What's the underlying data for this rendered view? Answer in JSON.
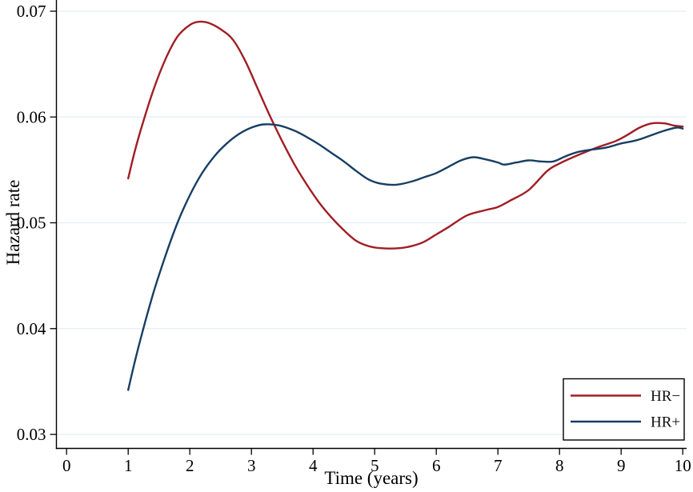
{
  "chart_data": {
    "type": "line",
    "title": "",
    "xlabel": "Time (years)",
    "ylabel": "Hazard rate",
    "xlim": [
      -0.17,
      10.06
    ],
    "ylim": [
      0.0287,
      0.0711
    ],
    "x_ticks": [
      0,
      1,
      2,
      3,
      4,
      5,
      6,
      7,
      8,
      9,
      10
    ],
    "y_ticks": [
      0.03,
      0.04,
      0.05,
      0.06,
      0.07
    ],
    "grid": "horizontal-only",
    "legend_position": "bottom-right",
    "series": [
      {
        "name": "HR−",
        "color": "#a01e24",
        "points": [
          [
            1.0,
            0.0542
          ],
          [
            1.1,
            0.0566
          ],
          [
            1.2,
            0.0587
          ],
          [
            1.4,
            0.0624
          ],
          [
            1.6,
            0.0654
          ],
          [
            1.8,
            0.0676
          ],
          [
            2.0,
            0.0687
          ],
          [
            2.15,
            0.069
          ],
          [
            2.3,
            0.0689
          ],
          [
            2.5,
            0.0683
          ],
          [
            2.7,
            0.0673
          ],
          [
            2.9,
            0.0653
          ],
          [
            3.1,
            0.0627
          ],
          [
            3.3,
            0.0601
          ],
          [
            3.5,
            0.0577
          ],
          [
            3.7,
            0.0555
          ],
          [
            3.9,
            0.0536
          ],
          [
            4.1,
            0.0519
          ],
          [
            4.3,
            0.0505
          ],
          [
            4.5,
            0.0493
          ],
          [
            4.7,
            0.0483
          ],
          [
            4.9,
            0.0478
          ],
          [
            5.1,
            0.0476
          ],
          [
            5.4,
            0.0476
          ],
          [
            5.6,
            0.0478
          ],
          [
            5.8,
            0.0482
          ],
          [
            6.0,
            0.0489
          ],
          [
            6.2,
            0.0496
          ],
          [
            6.5,
            0.0507
          ],
          [
            6.8,
            0.0512
          ],
          [
            7.0,
            0.0515
          ],
          [
            7.2,
            0.0521
          ],
          [
            7.5,
            0.0531
          ],
          [
            7.8,
            0.0549
          ],
          [
            8.0,
            0.0556
          ],
          [
            8.3,
            0.0564
          ],
          [
            8.6,
            0.0571
          ],
          [
            8.9,
            0.0577
          ],
          [
            9.1,
            0.0583
          ],
          [
            9.3,
            0.059
          ],
          [
            9.5,
            0.0594
          ],
          [
            9.7,
            0.0594
          ],
          [
            9.85,
            0.0592
          ],
          [
            10.0,
            0.0591
          ]
        ]
      },
      {
        "name": "HR+",
        "color": "#183f63",
        "points": [
          [
            1.0,
            0.0342
          ],
          [
            1.1,
            0.0367
          ],
          [
            1.2,
            0.039
          ],
          [
            1.4,
            0.0432
          ],
          [
            1.6,
            0.0468
          ],
          [
            1.8,
            0.05
          ],
          [
            2.0,
            0.0526
          ],
          [
            2.2,
            0.0547
          ],
          [
            2.4,
            0.0563
          ],
          [
            2.6,
            0.0575
          ],
          [
            2.8,
            0.0584
          ],
          [
            3.0,
            0.059
          ],
          [
            3.2,
            0.0593
          ],
          [
            3.45,
            0.0592
          ],
          [
            3.7,
            0.0587
          ],
          [
            3.9,
            0.0581
          ],
          [
            4.1,
            0.0574
          ],
          [
            4.3,
            0.0566
          ],
          [
            4.5,
            0.0558
          ],
          [
            4.7,
            0.0549
          ],
          [
            4.9,
            0.0541
          ],
          [
            5.1,
            0.0537
          ],
          [
            5.35,
            0.0536
          ],
          [
            5.6,
            0.0539
          ],
          [
            5.8,
            0.0543
          ],
          [
            6.0,
            0.0547
          ],
          [
            6.2,
            0.0553
          ],
          [
            6.4,
            0.0559
          ],
          [
            6.6,
            0.0562
          ],
          [
            6.8,
            0.056
          ],
          [
            7.0,
            0.0557
          ],
          [
            7.1,
            0.0555
          ],
          [
            7.3,
            0.0557
          ],
          [
            7.5,
            0.0559
          ],
          [
            7.7,
            0.0558
          ],
          [
            7.9,
            0.0558
          ],
          [
            8.1,
            0.0563
          ],
          [
            8.3,
            0.0567
          ],
          [
            8.5,
            0.0569
          ],
          [
            8.75,
            0.0571
          ],
          [
            9.0,
            0.0575
          ],
          [
            9.25,
            0.0578
          ],
          [
            9.5,
            0.0583
          ],
          [
            9.7,
            0.0587
          ],
          [
            9.9,
            0.059
          ],
          [
            10.0,
            0.0589
          ]
        ]
      }
    ]
  },
  "colors": {
    "background": "#ffffff",
    "grid": "#e7eef2",
    "axis": "#000000",
    "legend_border": "#000000"
  }
}
